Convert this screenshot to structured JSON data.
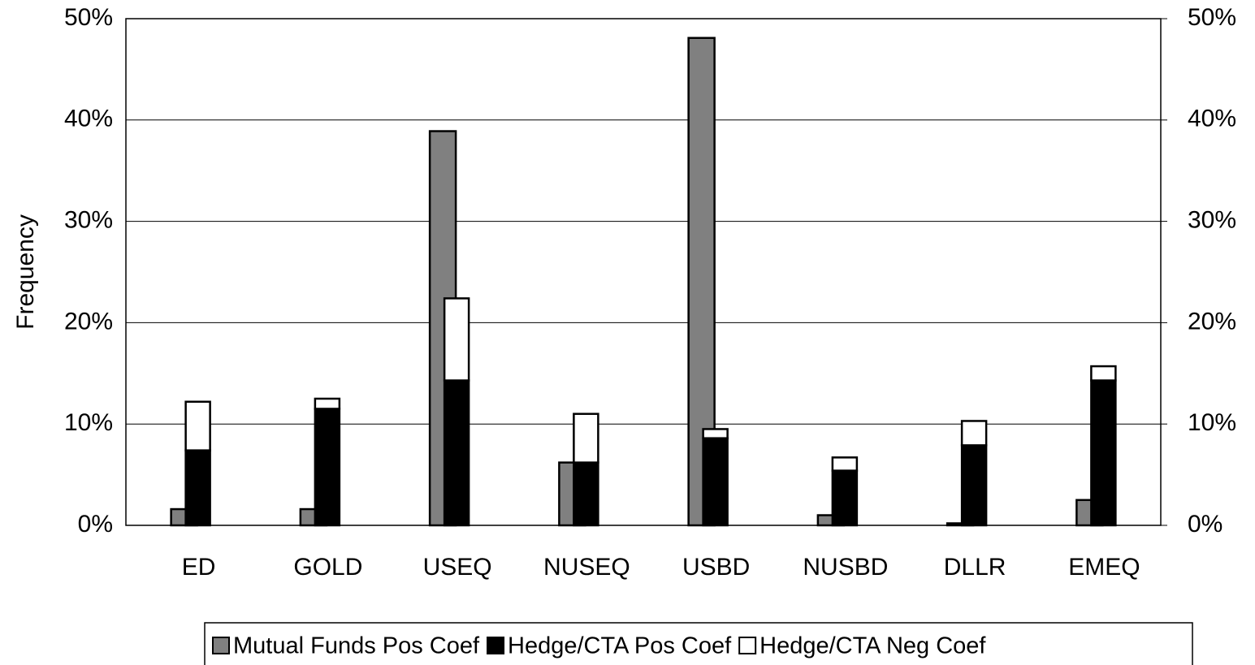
{
  "chart_data": {
    "type": "stacked-grouped-bar",
    "y_label": "Frequency",
    "categories": [
      "ED",
      "GOLD",
      "USEQ",
      "NUSEQ",
      "USBD",
      "NUSBD",
      "DLLR",
      "EMEQ"
    ],
    "series": [
      {
        "name": "Mutual Funds Pos Coef",
        "color": "#808080",
        "stack": "a",
        "values": [
          1.6,
          1.6,
          38.9,
          6.2,
          48.1,
          1.0,
          0.2,
          2.5
        ]
      },
      {
        "name": "Hedge/CTA Pos Coef",
        "color": "#000000",
        "stack": "b",
        "values": [
          7.4,
          11.5,
          14.3,
          6.2,
          8.6,
          5.4,
          7.9,
          14.3
        ]
      },
      {
        "name": "Hedge/CTA Neg Coef",
        "color": "#ffffff",
        "stack": "b",
        "values": [
          4.8,
          1.0,
          8.1,
          4.8,
          0.9,
          1.3,
          2.4,
          1.4
        ]
      }
    ],
    "ylim": [
      0,
      50
    ],
    "yticks": [
      {
        "value": 0,
        "label": "0%"
      },
      {
        "value": 10,
        "label": "10%"
      },
      {
        "value": 20,
        "label": "20%"
      },
      {
        "value": 30,
        "label": "30%"
      },
      {
        "value": 40,
        "label": "40%"
      },
      {
        "value": 50,
        "label": "50%"
      }
    ],
    "y2lim": [
      0,
      50
    ],
    "y2ticks": [
      {
        "value": 0,
        "label": "0%"
      },
      {
        "value": 10,
        "label": "10%"
      },
      {
        "value": 20,
        "label": "20%"
      },
      {
        "value": 30,
        "label": "30%"
      },
      {
        "value": 40,
        "label": "40%"
      },
      {
        "value": 50,
        "label": "50%"
      }
    ],
    "grid": true,
    "legend": "bottom"
  }
}
